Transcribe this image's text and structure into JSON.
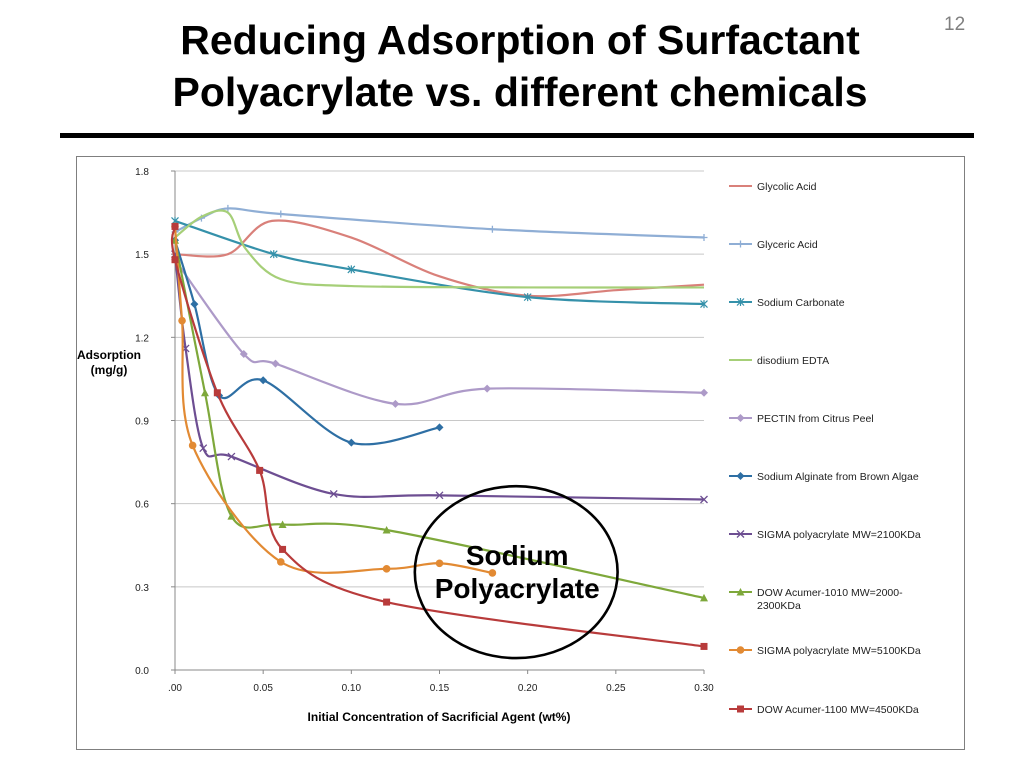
{
  "slide": {
    "title_line1": "Reducing Adsorption of Surfactant",
    "title_line2": "Polyacrylate vs. different chemicals",
    "page_number": "12"
  },
  "chart_data": {
    "type": "line",
    "ylabel_line1": "Adsorption",
    "ylabel_line2": "(mg/g)",
    "xlabel": "Initial Concentration of Sacrificial Agent (wt%)",
    "ylim": [
      0.0,
      1.8
    ],
    "xlim": [
      0.0,
      0.3
    ],
    "yticks": [
      0.0,
      0.3,
      0.6,
      0.9,
      1.2,
      1.5,
      1.8
    ],
    "ytick_labels": [
      "0.0",
      "0.3",
      "0.6",
      "0.9",
      "1.2",
      "1.5",
      "1.8"
    ],
    "xticks": [
      0.0,
      0.05,
      0.1,
      0.15,
      0.2,
      0.25,
      0.3
    ],
    "xtick_labels": [
      ".00",
      "0.05",
      "0.10",
      "0.15",
      "0.20",
      "0.25",
      "0.30"
    ],
    "grid": "horizontal",
    "legend_position": "right",
    "annotation": {
      "line1": "Sodium",
      "line2": "Polyacrylate",
      "ellipse_center": [
        0.1935,
        0.353
      ],
      "ellipse_radius": [
        0.0575,
        0.31
      ]
    },
    "series": [
      {
        "name": "Glycolic Acid",
        "color": "#d9807a",
        "marker": "none",
        "x": [
          0.0,
          0.03,
          0.055,
          0.1,
          0.15,
          0.2,
          0.25,
          0.3
        ],
        "y": [
          1.5,
          1.5,
          1.62,
          1.56,
          1.42,
          1.35,
          1.37,
          1.39
        ]
      },
      {
        "name": "Glyceric Acid",
        "color": "#8faed5",
        "marker": "plus",
        "x": [
          0.0,
          0.015,
          0.03,
          0.06,
          0.18,
          0.3
        ],
        "y": [
          1.58,
          1.63,
          1.665,
          1.645,
          1.59,
          1.56
        ]
      },
      {
        "name": "Sodium Carbonate",
        "color": "#3591aa",
        "marker": "star",
        "x": [
          0.0,
          0.056,
          0.1,
          0.2,
          0.3
        ],
        "y": [
          1.62,
          1.5,
          1.445,
          1.345,
          1.32
        ]
      },
      {
        "name": "disodium EDTA",
        "color": "#a6cf78",
        "marker": "none",
        "x": [
          0.0,
          0.015,
          0.03,
          0.04,
          0.06,
          0.1,
          0.2,
          0.3
        ],
        "y": [
          1.56,
          1.635,
          1.65,
          1.52,
          1.41,
          1.385,
          1.38,
          1.38
        ]
      },
      {
        "name": "PECTIN from Citrus Peel",
        "color": "#ad9ac8",
        "marker": "diamond",
        "x": [
          0.0,
          0.039,
          0.057,
          0.125,
          0.177,
          0.3
        ],
        "y": [
          1.48,
          1.14,
          1.105,
          0.96,
          1.015,
          1.0
        ]
      },
      {
        "name": "Sodium Alginate from Brown Algae",
        "color": "#2e6fa4",
        "marker": "diamond",
        "x": [
          0.0,
          0.011,
          0.025,
          0.05,
          0.1,
          0.15
        ],
        "y": [
          1.55,
          1.32,
          0.99,
          1.045,
          0.82,
          0.875
        ]
      },
      {
        "name": "SIGMA polyacrylate MW=2100KDa",
        "color": "#6d4e92",
        "marker": "x",
        "x": [
          0.0,
          0.006,
          0.016,
          0.032,
          0.09,
          0.15,
          0.3
        ],
        "y": [
          1.5,
          1.16,
          0.8,
          0.77,
          0.635,
          0.63,
          0.615
        ]
      },
      {
        "name": "DOW Acumer-1010  MW=2000-2300KDa",
        "color": "#7ea83b",
        "marker": "triangle",
        "x": [
          0.0,
          0.017,
          0.032,
          0.061,
          0.12,
          0.3
        ],
        "y": [
          1.55,
          1.0,
          0.555,
          0.525,
          0.505,
          0.26
        ]
      },
      {
        "name": "SIGMA polyacrylate MW=5100KDa",
        "color": "#e28a33",
        "marker": "circle",
        "x": [
          0.0,
          0.004,
          0.01,
          0.06,
          0.12,
          0.15,
          0.18
        ],
        "y": [
          1.6,
          1.26,
          0.81,
          0.39,
          0.365,
          0.385,
          0.35
        ]
      },
      {
        "name": "DOW Acumer-1100  MW=4500KDa",
        "color": "#b83b3b",
        "marker": "square",
        "x": [
          0.0,
          0.0,
          0.024,
          0.048,
          0.061,
          0.12,
          0.3
        ],
        "y": [
          1.6,
          1.48,
          1.0,
          0.72,
          0.435,
          0.245,
          0.085
        ]
      }
    ],
    "legend_label_lines": [
      [
        "Glycolic Acid"
      ],
      [
        "Glyceric Acid"
      ],
      [
        "Sodium Carbonate"
      ],
      [
        "disodium EDTA"
      ],
      [
        "PECTIN  from Citrus Peel"
      ],
      [
        "Sodium Alginate from Brown Algae"
      ],
      [
        "SIGMA polyacrylate MW=2100KDa"
      ],
      [
        "DOW Acumer-1010  MW=2000-",
        "2300KDa"
      ],
      [
        "SIGMA polyacrylate MW=5100KDa"
      ],
      [
        "DOW Acumer-1100  MW=4500KDa"
      ]
    ]
  }
}
